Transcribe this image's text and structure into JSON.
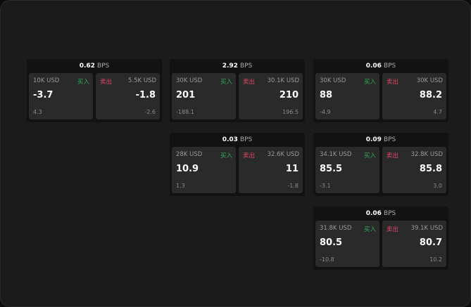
{
  "buy_label": "买入",
  "sell_label": "卖出",
  "unit": "BPS",
  "colors": {
    "buy": "#2fa85a",
    "sell": "#e0476a"
  },
  "cards": [
    {
      "spread": "0.62",
      "buy": {
        "size": "10K USD",
        "price": "-3.7",
        "delta": "4.3"
      },
      "sell": {
        "size": "5.5K USD",
        "price": "-1.8",
        "delta": "-2.6"
      }
    },
    {
      "spread": "2.92",
      "buy": {
        "size": "30K USD",
        "price": "201",
        "delta": "-188.1"
      },
      "sell": {
        "size": "30.1K USD",
        "price": "210",
        "delta": "196.5"
      }
    },
    {
      "spread": "0.06",
      "buy": {
        "size": "30K USD",
        "price": "88",
        "delta": "-4.9"
      },
      "sell": {
        "size": "30K USD",
        "price": "88.2",
        "delta": "4.7"
      }
    },
    {
      "spread": "0.03",
      "buy": {
        "size": "28K USD",
        "price": "10.9",
        "delta": "1.3"
      },
      "sell": {
        "size": "32.6K USD",
        "price": "11",
        "delta": "-1.8"
      }
    },
    {
      "spread": "0.09",
      "buy": {
        "size": "34.1K USD",
        "price": "85.5",
        "delta": "-3.1"
      },
      "sell": {
        "size": "32.8K USD",
        "price": "85.8",
        "delta": "3.0"
      }
    },
    {
      "spread": "0.06",
      "buy": {
        "size": "31.8K USD",
        "price": "80.5",
        "delta": "-10.8"
      },
      "sell": {
        "size": "39.1K USD",
        "price": "80.7",
        "delta": "10.2"
      }
    }
  ]
}
